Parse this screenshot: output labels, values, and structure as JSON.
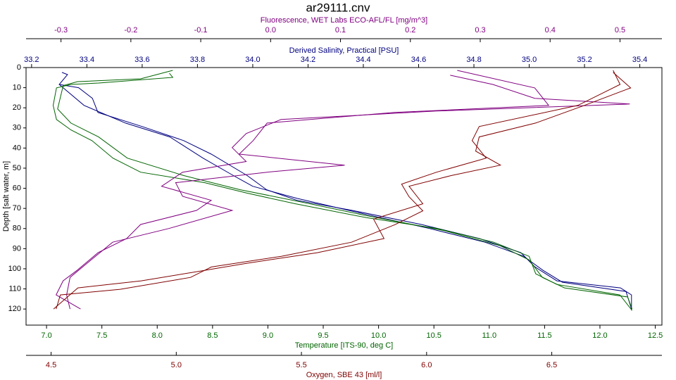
{
  "chart_data": {
    "type": "line",
    "title": "ar29111.cnv",
    "y_axis": {
      "label": "Depth [salt water, m]",
      "ylim": [
        0,
        128
      ],
      "yticks": [
        0,
        10,
        20,
        30,
        40,
        50,
        60,
        70,
        80,
        90,
        100,
        110,
        120
      ]
    },
    "x_axes": [
      {
        "label": "Fluorescence, WET Labs ECO-AFL/FL [mg/m^3]",
        "color": "#800080",
        "xlim": [
          -0.35,
          0.56
        ],
        "xticks": [
          -0.3,
          -0.2,
          -0.1,
          {
            "value": 0,
            "label": "0.0"
          },
          0.1,
          0.2,
          0.3,
          0.4,
          0.5
        ]
      },
      {
        "label": "Derived Salinity, Practical [PSU]",
        "color": "#000080",
        "xlim": [
          33.18,
          35.48
        ],
        "xticks": [
          33.2,
          33.4,
          33.6,
          33.8,
          {
            "value": 34,
            "label": "34.0"
          },
          34.2,
          34.4,
          34.6,
          34.8,
          {
            "value": 35,
            "label": "35.0"
          },
          35.2,
          35.4
        ]
      },
      {
        "label": "Temperature [ITS-90, deg C]",
        "color": "#006400",
        "xlim": [
          6.815,
          12.56
        ],
        "xticks": [
          {
            "value": 7,
            "label": "7.0"
          },
          7.5,
          {
            "value": 8,
            "label": "8.0"
          },
          8.5,
          {
            "value": 9,
            "label": "9.0"
          },
          9.5,
          {
            "value": 10,
            "label": "10.0"
          },
          10.5,
          {
            "value": 11,
            "label": "11.0"
          },
          11.5,
          {
            "value": 12,
            "label": "12.0"
          },
          12.5
        ]
      },
      {
        "label": "Oxygen, SBE 43 [ml/l]",
        "color": "#800000",
        "xlim": [
          4.4,
          6.94
        ],
        "xticks": [
          4.5,
          {
            "value": 5,
            "label": "5.0"
          },
          5.5,
          {
            "value": 6,
            "label": "6.0"
          },
          6.5
        ]
      }
    ],
    "series": [
      {
        "axis": 1,
        "color": "#000080",
        "depth": [
          2.4,
          3.5,
          8.4,
          10,
          15.3,
          22.3,
          29.3,
          36.3,
          43,
          53.7,
          60.7,
          66,
          71,
          78,
          85,
          92,
          99,
          106,
          109.5,
          113,
          120.7
        ],
        "values": [
          33.31,
          33.33,
          33.3,
          33.37,
          33.42,
          33.44,
          33.6,
          33.75,
          33.85,
          33.98,
          34.05,
          34.16,
          34.36,
          34.61,
          34.82,
          34.97,
          35.02,
          35.1,
          35.33,
          35.37,
          35.37
        ]
      },
      {
        "axis": 1,
        "color": "#000080",
        "depth": [
          8.4,
          18.8,
          27.6,
          34.5,
          45,
          53.7,
          59,
          65,
          73,
          80,
          86.8,
          93.8,
          100.8,
          106.7,
          111.3,
          120
        ],
        "values": [
          33.3,
          33.39,
          33.54,
          33.7,
          33.82,
          33.93,
          34.0,
          34.16,
          34.41,
          34.64,
          34.84,
          34.98,
          35.05,
          35.12,
          35.35,
          35.37
        ]
      },
      {
        "axis": 2,
        "color": "#006400",
        "depth": [
          2.8,
          4.9,
          7.7,
          8.4,
          10.1,
          18.8,
          25.8,
          31,
          36.3,
          45,
          52,
          57.2,
          62.4,
          67.7,
          74.6,
          80,
          86.8,
          93.8,
          102.5,
          107.8,
          113,
          120.7
        ],
        "values": [
          8.11,
          8.14,
          7.47,
          7.22,
          7.09,
          7.06,
          7.09,
          7.22,
          7.41,
          7.6,
          7.85,
          8.43,
          8.81,
          9.25,
          9.89,
          10.53,
          11.04,
          11.36,
          11.42,
          11.61,
          12.18,
          12.29
        ]
      },
      {
        "axis": 2,
        "color": "#006400",
        "depth": [
          1.4,
          5.6,
          7,
          9,
          20.6,
          27.6,
          34.5,
          45,
          53.7,
          60.7,
          67,
          73.6,
          81,
          88.6,
          95.6,
          104.3,
          109.5,
          114,
          120
        ],
        "values": [
          8.14,
          7.85,
          7.28,
          7.15,
          7.1,
          7.22,
          7.47,
          7.73,
          8.24,
          8.75,
          9.32,
          9.89,
          10.59,
          11.1,
          11.36,
          11.48,
          11.68,
          12.25,
          12.29
        ]
      },
      {
        "axis": 0,
        "color": "#800080",
        "depth": [
          3.8,
          8.4,
          15.3,
          18.1,
          21.6,
          25.8,
          32.8,
          39.8,
          46.7,
          52,
          59,
          66,
          71,
          78,
          85,
          92,
          100.8,
          106,
          113,
          120
        ],
        "values": [
          0.257,
          0.318,
          0.378,
          0.514,
          0.237,
          0.015,
          -0.035,
          -0.055,
          -0.035,
          -0.126,
          -0.156,
          -0.085,
          -0.106,
          -0.186,
          -0.206,
          -0.247,
          -0.277,
          -0.297,
          -0.307,
          -0.272
        ]
      },
      {
        "axis": 0,
        "color": "#800080",
        "depth": [
          1.4,
          10.1,
          18.8,
          22.3,
          27.6,
          36.3,
          43,
          48.5,
          52,
          57.2,
          64,
          71,
          80,
          86.8,
          95.6,
          104.3,
          113,
          120
        ],
        "values": [
          0.267,
          0.378,
          0.398,
          0.177,
          -0.005,
          -0.025,
          -0.045,
          0.106,
          -0.005,
          -0.136,
          -0.126,
          -0.055,
          -0.146,
          -0.226,
          -0.257,
          -0.287,
          -0.292,
          -0.287
        ]
      },
      {
        "axis": 3,
        "color": "#800000",
        "depth": [
          2.4,
          10.1,
          18.8,
          27.6,
          34.5,
          41.5,
          48.5,
          53.7,
          59,
          67.7,
          75.3,
          85,
          92,
          97.3,
          100.8,
          106,
          109.5,
          120
        ],
        "values": [
          6.745,
          6.815,
          6.63,
          6.435,
          6.21,
          6.196,
          6.295,
          6.098,
          5.93,
          5.985,
          5.788,
          5.83,
          5.563,
          5.28,
          5.113,
          4.86,
          4.607,
          4.51
        ]
      },
      {
        "axis": 3,
        "color": "#800000",
        "depth": [
          1.4,
          8.4,
          18.8,
          29.3,
          36.3,
          45,
          52,
          57.9,
          64.2,
          71.2,
          78.1,
          86.8,
          93.8,
          99.1,
          104.3,
          110.2,
          113,
          120
        ],
        "values": [
          6.745,
          6.773,
          6.604,
          6.21,
          6.182,
          6.238,
          6.04,
          5.9,
          5.93,
          5.985,
          5.873,
          5.7,
          5.42,
          5.14,
          5.057,
          4.776,
          4.537,
          4.52
        ]
      }
    ]
  }
}
